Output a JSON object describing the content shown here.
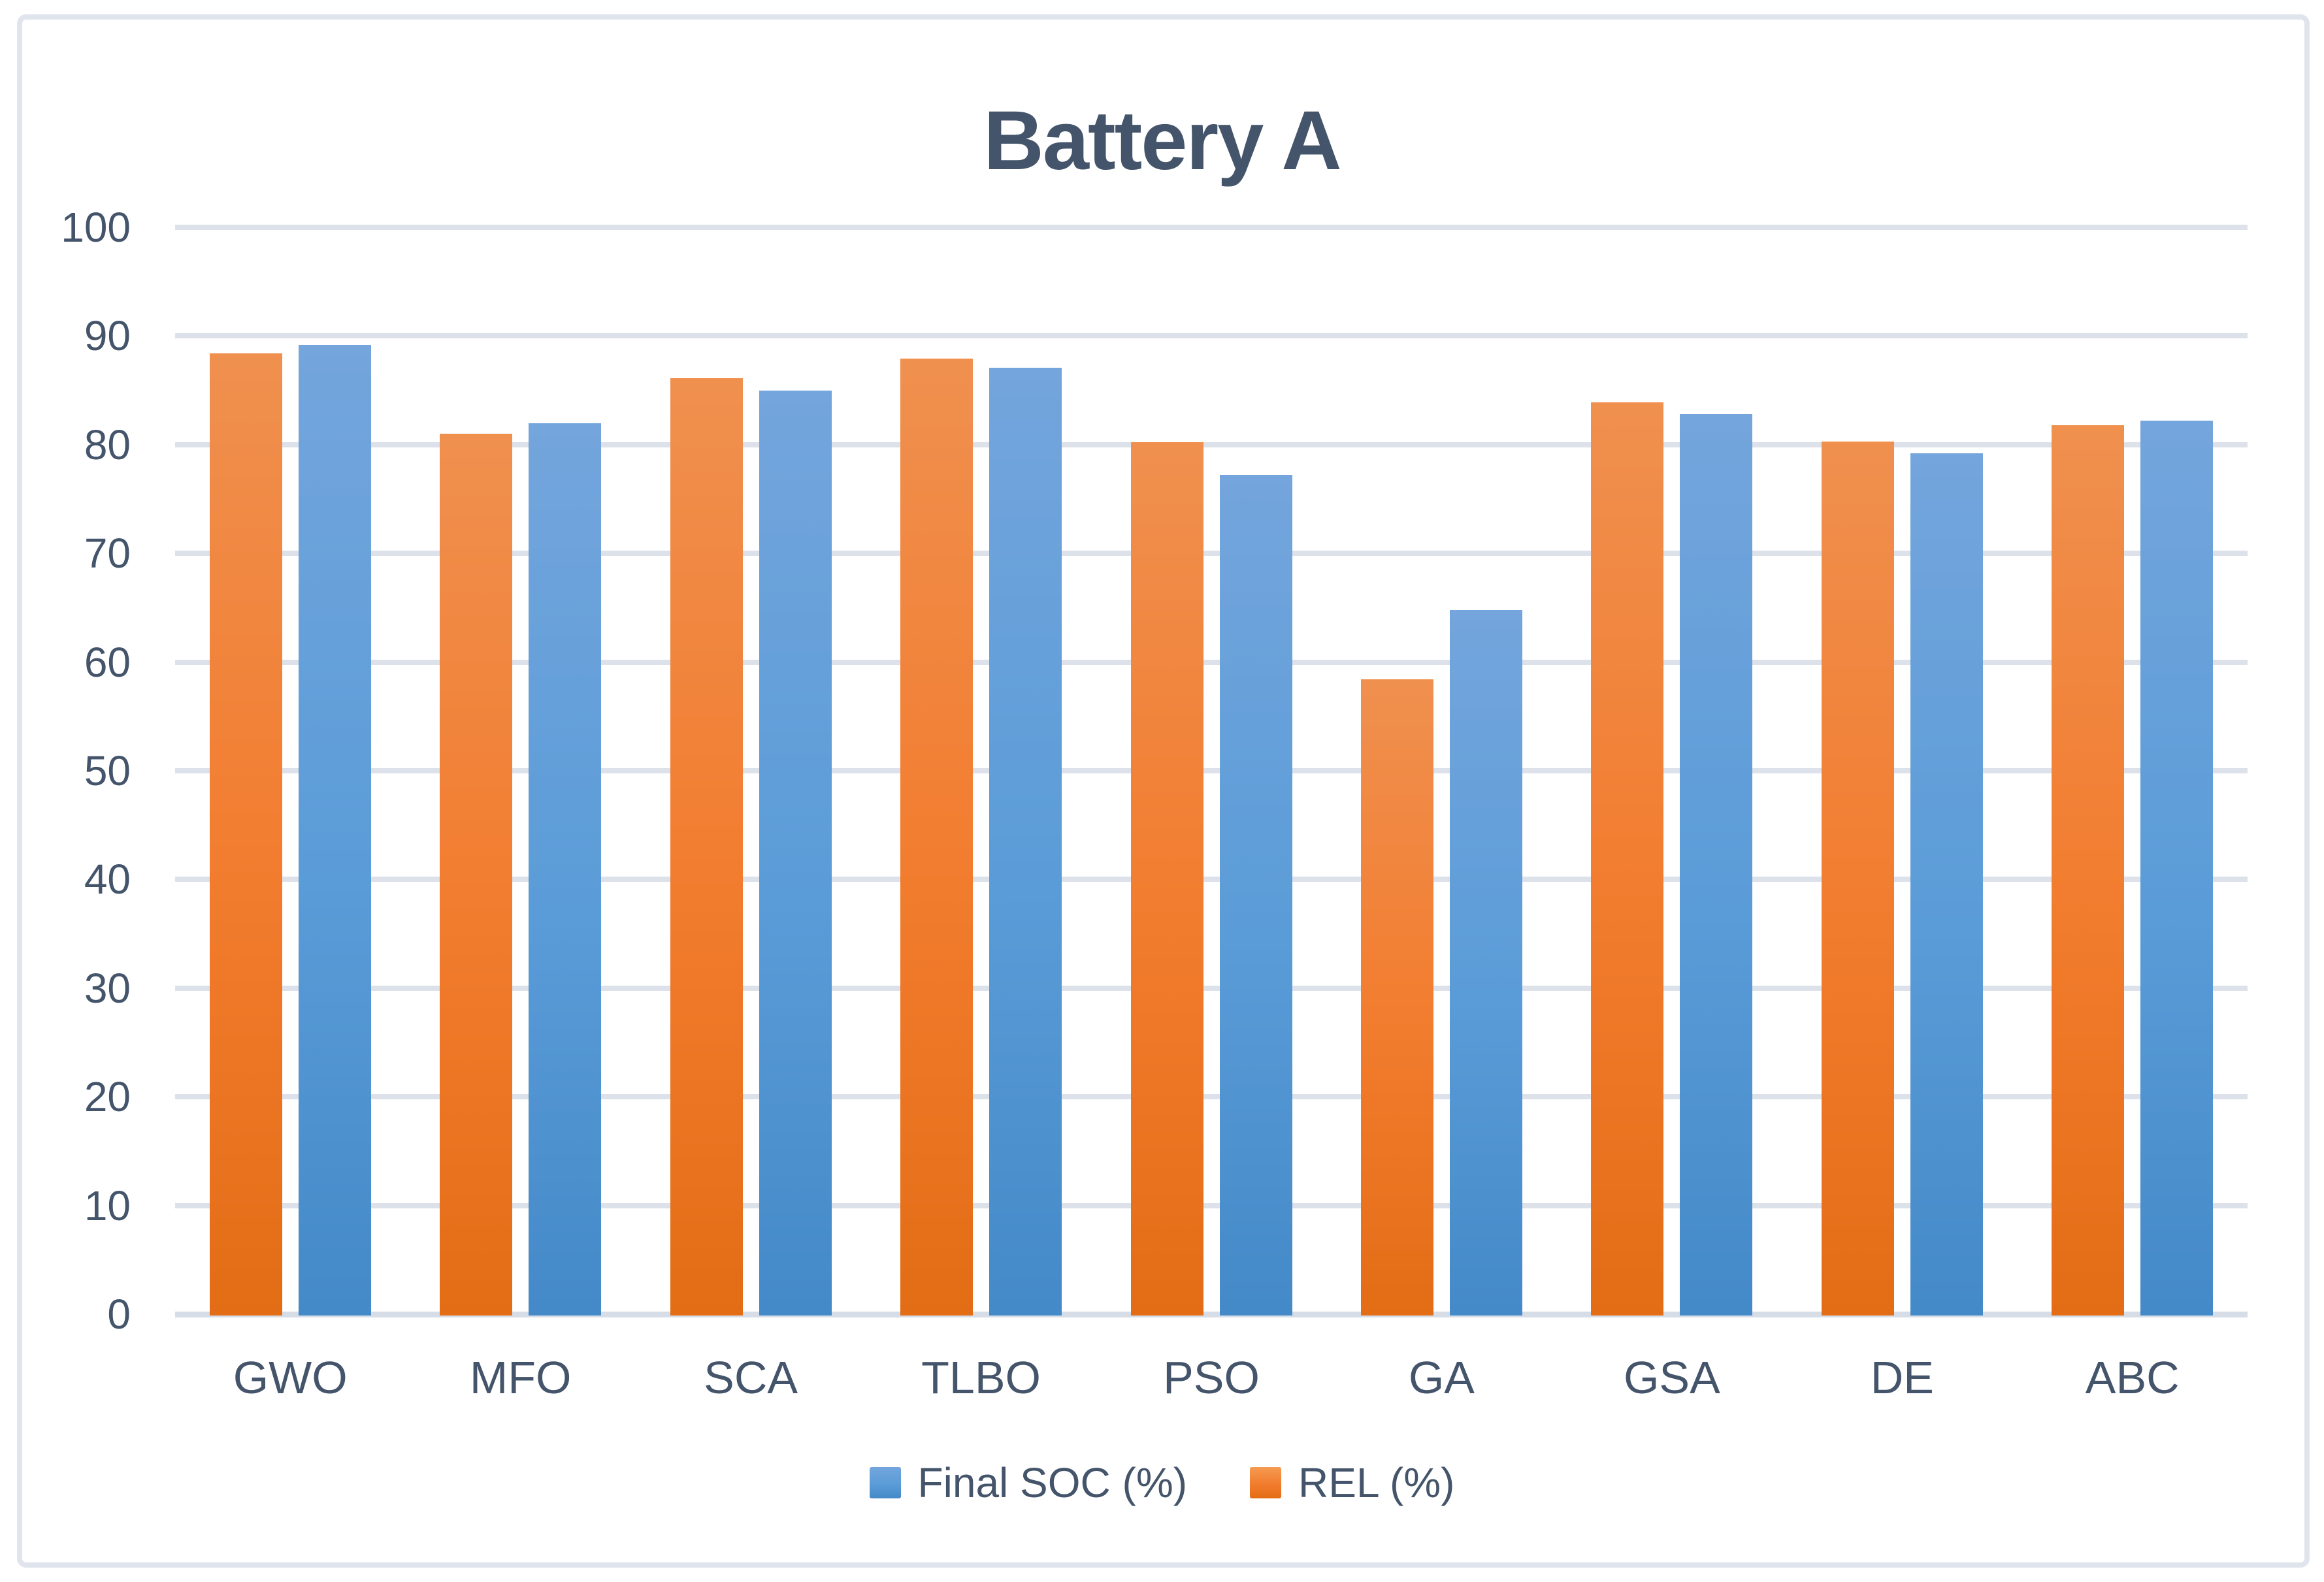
{
  "chart_data": {
    "type": "bar",
    "title": "Battery A",
    "categories": [
      "GWO",
      "MFO",
      "SCA",
      "TLBO",
      "PSO",
      "GA",
      "GSA",
      "DE",
      "ABC"
    ],
    "series": [
      {
        "name": "REL (%)",
        "color": "#ED7D31",
        "position_in_group": "left",
        "values": [
          88.4,
          81.0,
          86.1,
          87.9,
          80.2,
          58.4,
          83.9,
          80.3,
          81.8
        ]
      },
      {
        "name": "Final SOC (%)",
        "color": "#5B9BD5",
        "position_in_group": "right",
        "values": [
          89.2,
          82.0,
          85.0,
          87.1,
          77.2,
          64.8,
          82.8,
          79.2,
          82.2
        ]
      }
    ],
    "legend": [
      {
        "label": "Final SOC (%)",
        "color": "#5B9BD5"
      },
      {
        "label": "REL (%)",
        "color": "#ED7D31"
      }
    ],
    "xlabel": "",
    "ylabel": "",
    "ylim": [
      0,
      100
    ],
    "yticks": [
      "0",
      "10",
      "20",
      "30",
      "40",
      "50",
      "60",
      "70",
      "80",
      "90",
      "100"
    ],
    "grid": true,
    "legend_position": "bottom"
  },
  "style": {
    "text_color": "#44546A",
    "gridline_color": "#DCE1EA",
    "frame_color": "#E0E4EC",
    "orange_gradient": [
      "#F0904F",
      "#F27C2E",
      "#E36D15"
    ],
    "blue_gradient": [
      "#74A5DC",
      "#5A9CD8",
      "#4489C8"
    ]
  }
}
